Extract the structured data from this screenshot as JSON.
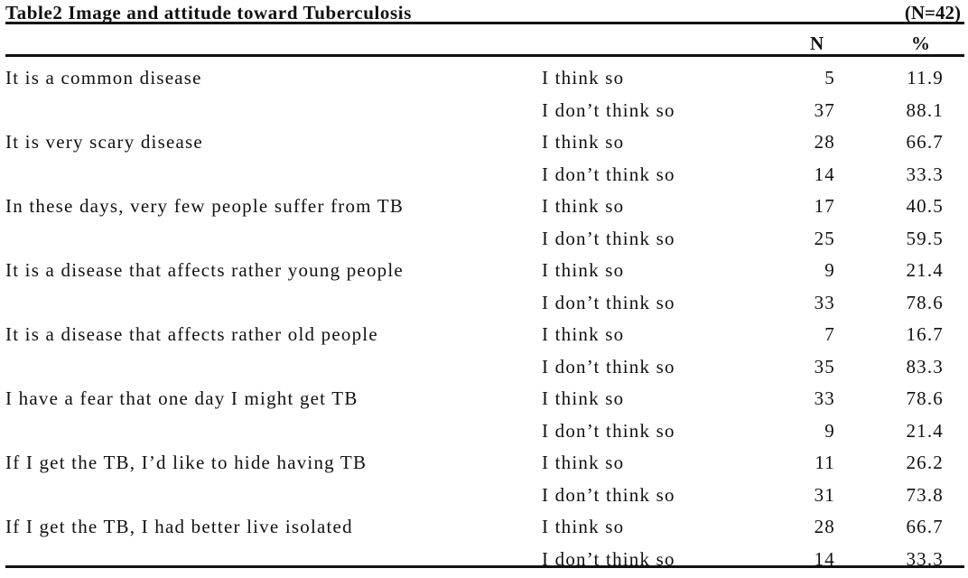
{
  "table": {
    "title": "Table2   Image and attitude toward Tuberculosis",
    "total": "(N=42)",
    "headers": {
      "n": "N",
      "percent": "%"
    },
    "rows": [
      {
        "statement": "It is a common disease",
        "answer": "I think so",
        "n": "5",
        "percent": "11.9"
      },
      {
        "statement": "",
        "answer": "I don’t think so",
        "n": "37",
        "percent": "88.1"
      },
      {
        "statement": "It is very scary disease",
        "answer": "I think so",
        "n": "28",
        "percent": "66.7"
      },
      {
        "statement": "",
        "answer": "I don’t think so",
        "n": "14",
        "percent": "33.3"
      },
      {
        "statement": "In these days, very few people suffer from TB",
        "answer": "I think so",
        "n": "17",
        "percent": "40.5"
      },
      {
        "statement": "",
        "answer": "I don’t think so",
        "n": "25",
        "percent": "59.5"
      },
      {
        "statement": "It is a disease that affects rather young people",
        "answer": "I think so",
        "n": "9",
        "percent": "21.4"
      },
      {
        "statement": "",
        "answer": "I don’t think so",
        "n": "33",
        "percent": "78.6"
      },
      {
        "statement": "It is a disease that affects rather old people",
        "answer": "I think so",
        "n": "7",
        "percent": "16.7"
      },
      {
        "statement": "",
        "answer": "I don’t think so",
        "n": "35",
        "percent": "83.3"
      },
      {
        "statement": "I have a fear that one day I might get TB",
        "answer": "I think so",
        "n": "33",
        "percent": "78.6"
      },
      {
        "statement": "",
        "answer": "I don’t think so",
        "n": "9",
        "percent": "21.4"
      },
      {
        "statement": "If I get the TB, I’d like to hide having TB",
        "answer": "I think so",
        "n": "11",
        "percent": "26.2"
      },
      {
        "statement": "",
        "answer": "I don’t think so",
        "n": "31",
        "percent": "73.8"
      },
      {
        "statement": "If I get the TB, I had better live isolated",
        "answer": "I think so",
        "n": "28",
        "percent": "66.7"
      },
      {
        "statement": "",
        "answer": "I don’t think so",
        "n": "14",
        "percent": "33.3"
      }
    ]
  }
}
